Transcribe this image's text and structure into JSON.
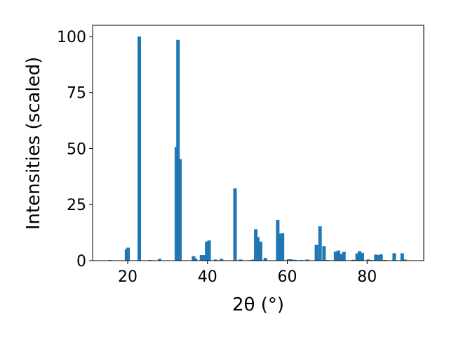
{
  "chart_data": {
    "type": "bar",
    "xlabel": "2θ (°)",
    "ylabel": "Intensities (scaled)",
    "x": [
      15.5,
      19.7,
      20.1,
      22.9,
      25.5,
      28.0,
      32.2,
      32.6,
      33.1,
      36.5,
      37.0,
      38.5,
      39.0,
      39.8,
      40.4,
      42.0,
      43.5,
      46.9,
      48.3,
      51.0,
      51.5,
      52.1,
      52.6,
      53.3,
      54.5,
      57.6,
      58.3,
      58.8,
      60.3,
      61.0,
      62.0,
      63.5,
      65.0,
      67.3,
      68.2,
      69.2,
      70.0,
      72.1,
      72.8,
      73.6,
      74.2,
      76.5,
      77.5,
      78.1,
      78.8,
      80.3,
      81.0,
      82.2,
      82.8,
      83.5,
      84.5,
      86.8,
      88.8,
      89.5
    ],
    "values": [
      0.3,
      5.0,
      5.8,
      100,
      0.3,
      0.8,
      50.7,
      98.5,
      45.3,
      2.0,
      1.0,
      2.5,
      2.5,
      8.5,
      9.0,
      0.5,
      0.8,
      32.2,
      0.5,
      0.3,
      0.5,
      14.0,
      10.5,
      8.5,
      1.2,
      18.2,
      12.0,
      12.2,
      0.6,
      0.6,
      0.4,
      0.3,
      0.5,
      7.0,
      15.3,
      6.5,
      0.3,
      4.0,
      4.5,
      3.0,
      3.9,
      0.4,
      3.2,
      4.2,
      3.5,
      0.5,
      0.3,
      2.7,
      2.5,
      2.8,
      0.3,
      3.3,
      3.3,
      0.5
    ],
    "color": "#1f77b4",
    "xlim": [
      11.2,
      94.2
    ],
    "ylim": [
      0,
      105
    ],
    "xticks": [
      20,
      40,
      60,
      80
    ],
    "yticks": [
      0,
      25,
      50,
      75,
      100
    ]
  }
}
